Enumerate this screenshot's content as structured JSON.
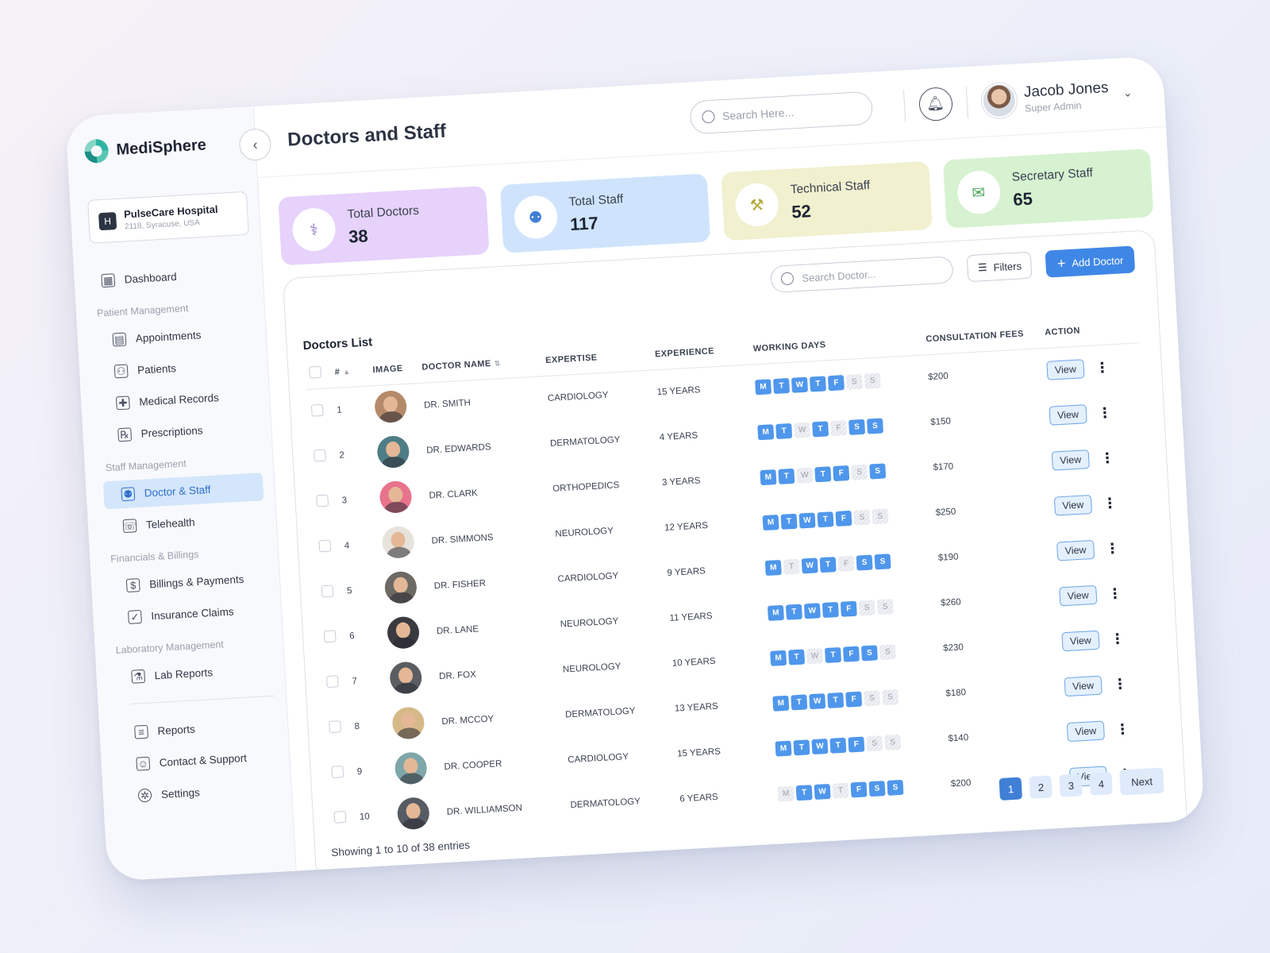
{
  "brand": {
    "name": "MediSphere"
  },
  "hospital": {
    "name": "PulseCare Hospital",
    "address": "2118, Syracuse, USA"
  },
  "nav": {
    "dashboard": "Dashboard",
    "sections": {
      "patient": "Patient Management",
      "staff": "Staff Management",
      "financial": "Financials & Billings",
      "lab": "Laboratory Management"
    },
    "items": {
      "appointments": "Appointments",
      "patients": "Patients",
      "medical_records": "Medical Records",
      "prescriptions": "Prescriptions",
      "doctor_staff": "Doctor & Staff",
      "telehealth": "Telehealth",
      "billings": "Billings & Payments",
      "insurance": "Insurance Claims",
      "lab_reports": "Lab Reports",
      "reports": "Reports",
      "contact": "Contact & Support",
      "settings": "Settings"
    }
  },
  "header": {
    "title": "Doctors and Staff",
    "search_placeholder": "Search Here...",
    "user_name": "Jacob Jones",
    "user_role": "Super Admin"
  },
  "stats": [
    {
      "label": "Total Doctors",
      "value": "38",
      "color": "#e6d2fb"
    },
    {
      "label": "Total Staff",
      "value": "117",
      "color": "#cfe4fc"
    },
    {
      "label": "Technical Staff",
      "value": "52",
      "color": "#f1f0cf"
    },
    {
      "label": "Secretary Staff",
      "value": "65",
      "color": "#d6f2d0"
    }
  ],
  "list": {
    "title": "Doctors List",
    "search_placeholder": "Search Doctor...",
    "filters_label": "Filters",
    "add_label": "Add Doctor",
    "columns": {
      "num": "#",
      "image": "Image",
      "name": "Doctor Name",
      "expertise": "Expertise",
      "experience": "Experience",
      "days": "Working Days",
      "fees": "Consultation Fees",
      "action": "Action"
    },
    "view_label": "View",
    "day_letters": [
      "M",
      "T",
      "W",
      "T",
      "F",
      "S",
      "S"
    ],
    "rows": [
      {
        "num": "1",
        "name": "Dr. Smith",
        "expertise": "Cardiology",
        "experience": "15 Years",
        "days": [
          1,
          1,
          1,
          1,
          1,
          0,
          0
        ],
        "fee": "$200",
        "avatar": "#b58a6a"
      },
      {
        "num": "2",
        "name": "Dr. Edwards",
        "expertise": "Dermatology",
        "experience": "4 Years",
        "days": [
          1,
          1,
          0,
          1,
          0,
          1,
          1
        ],
        "fee": "$150",
        "avatar": "#4f7d86"
      },
      {
        "num": "3",
        "name": "Dr. Clark",
        "expertise": "Orthopedics",
        "experience": "3 Years",
        "days": [
          1,
          1,
          0,
          1,
          1,
          0,
          1
        ],
        "fee": "$170",
        "avatar": "#e8738c"
      },
      {
        "num": "4",
        "name": "Dr.  Simmons",
        "expertise": "Neurology",
        "experience": "12 Years",
        "days": [
          1,
          1,
          1,
          1,
          1,
          0,
          0
        ],
        "fee": "$250",
        "avatar": "#e7e3dc"
      },
      {
        "num": "5",
        "name": "Dr. Fisher",
        "expertise": "Cardiology",
        "experience": "9 Years",
        "days": [
          1,
          0,
          1,
          1,
          0,
          1,
          1
        ],
        "fee": "$190",
        "avatar": "#6d6a66"
      },
      {
        "num": "6",
        "name": "Dr.  Lane",
        "expertise": "Neurology",
        "experience": "11 Years",
        "days": [
          1,
          1,
          1,
          1,
          1,
          0,
          0
        ],
        "fee": "$260",
        "avatar": "#3a3a40"
      },
      {
        "num": "7",
        "name": "Dr. Fox",
        "expertise": "Neurology",
        "experience": "10 Years",
        "days": [
          1,
          1,
          0,
          1,
          1,
          1,
          0
        ],
        "fee": "$230",
        "avatar": "#5a5e62"
      },
      {
        "num": "8",
        "name": "Dr. McCoy",
        "expertise": "Dermatology",
        "experience": "13 Years",
        "days": [
          1,
          1,
          1,
          1,
          1,
          0,
          0
        ],
        "fee": "$180",
        "avatar": "#d6b988"
      },
      {
        "num": "9",
        "name": "Dr. Cooper",
        "expertise": "Cardiology",
        "experience": "15 Years",
        "days": [
          1,
          1,
          1,
          1,
          1,
          0,
          0
        ],
        "fee": "$140",
        "avatar": "#7ea7a9"
      },
      {
        "num": "10",
        "name": "Dr. Williamson",
        "expertise": "Dermatology",
        "experience": "6 Years",
        "days": [
          0,
          1,
          1,
          0,
          1,
          1,
          1
        ],
        "fee": "$200",
        "avatar": "#575b63"
      }
    ],
    "showing": "Showing 1 to 10 of 38 entries",
    "pages": [
      "1",
      "2",
      "3",
      "4"
    ],
    "next_label": "Next"
  }
}
